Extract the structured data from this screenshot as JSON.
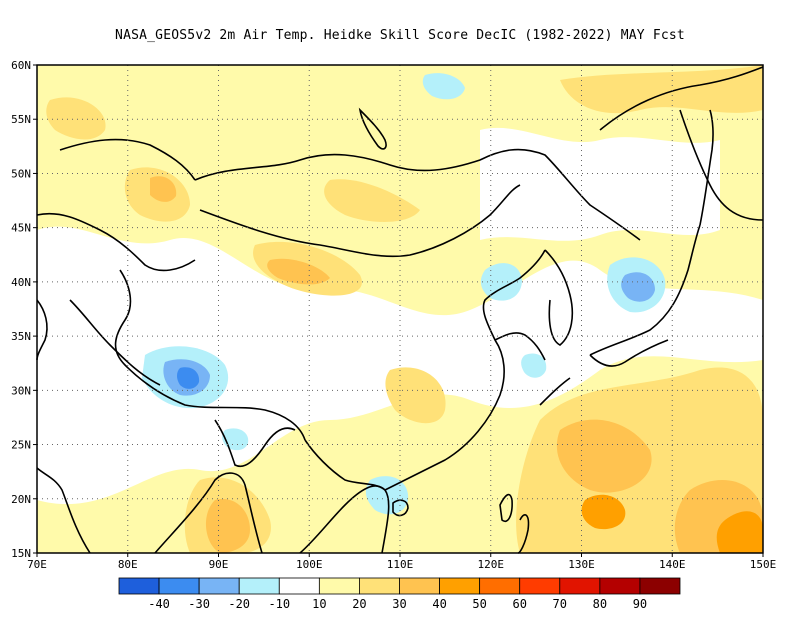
{
  "title": "NASA_GEOS5v2  2m Air Temp. Heidke Skill Score DecIC (1982-2022) MAY Fcst",
  "map": {
    "lon_range": [
      70,
      150
    ],
    "lat_range": [
      15,
      60
    ],
    "lon_ticks": [
      "70E",
      "80E",
      "90E",
      "100E",
      "110E",
      "120E",
      "130E",
      "140E",
      "150E"
    ],
    "lat_ticks": [
      "15N",
      "20N",
      "25N",
      "30N",
      "35N",
      "40N",
      "45N",
      "50N",
      "55N",
      "60N"
    ],
    "gridlines": "dotted"
  },
  "colorbar": {
    "levels": [
      "-40",
      "-30",
      "-20",
      "-10",
      "10",
      "20",
      "30",
      "40",
      "50",
      "60",
      "70",
      "80",
      "90"
    ],
    "colors": [
      "#1e5fdc",
      "#3c8cf0",
      "#78b4f5",
      "#b4f0fa",
      "#ffffff",
      "#fffaaa",
      "#ffe178",
      "#ffc350",
      "#ffa000",
      "#ff6e00",
      "#ff3c00",
      "#e11400",
      "#b40000",
      "#8c0000"
    ]
  },
  "colors": {
    "coastline": "#000000",
    "land_default": "#ffffff"
  }
}
